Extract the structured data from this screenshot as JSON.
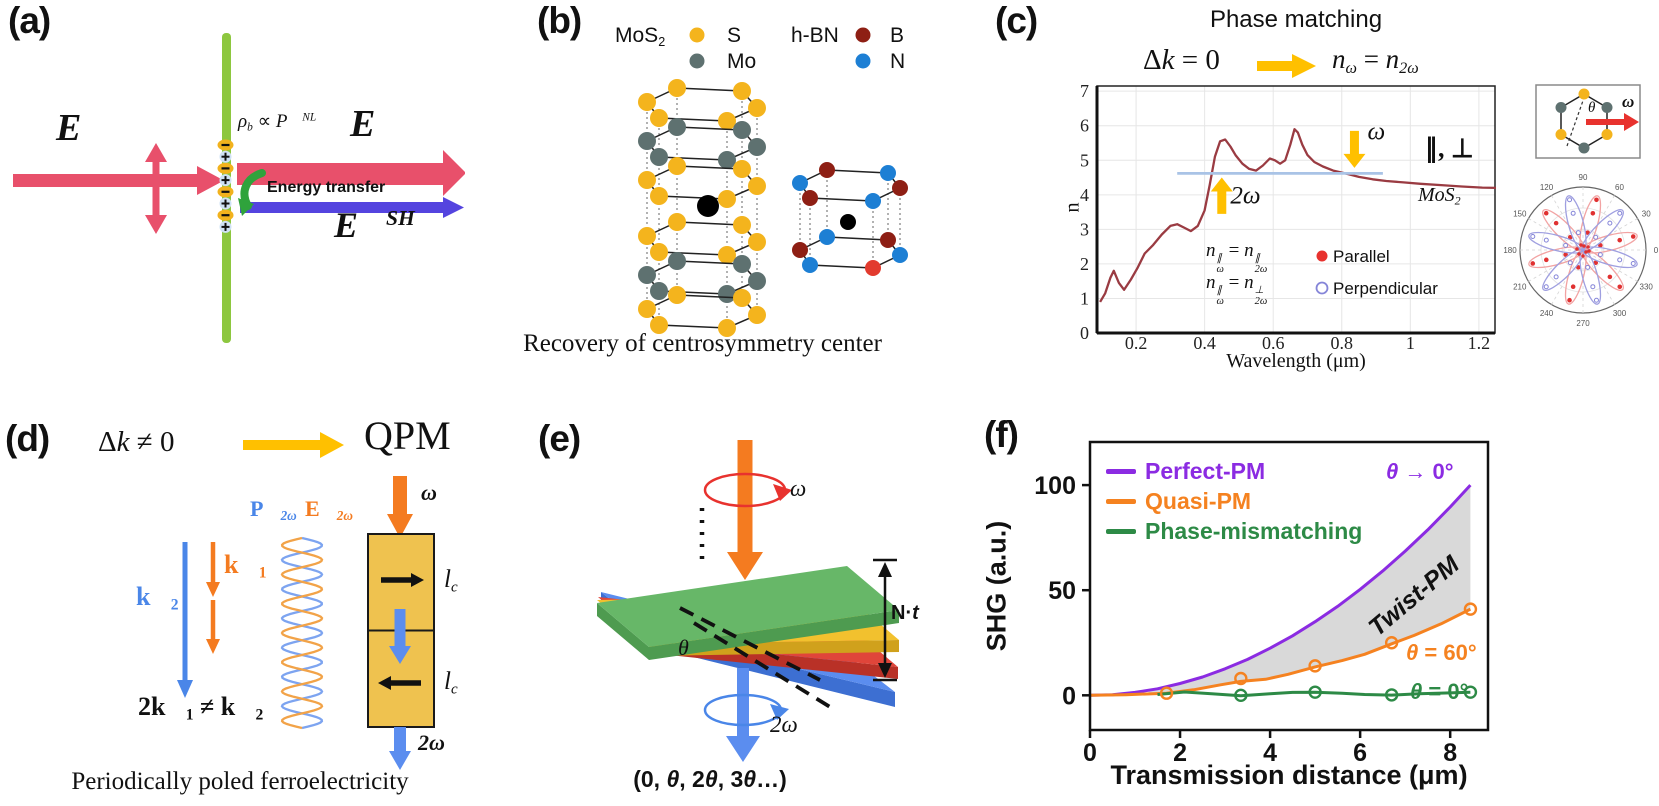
{
  "colors": {
    "pink": "#e8506b",
    "indigo": "#5444df",
    "green_bar": "#8dc73f",
    "green_arrow": "#2fa33c",
    "charge_yellow": "#f2b21d",
    "charge_plus_bg": "#cfe2f5",
    "atom_s": "#f4b41d",
    "atom_mo": "#5e7170",
    "atom_b": "#8e1f14",
    "atom_n": "#1d7fd4",
    "atom_b_bright": "#e23b2e",
    "curve_red": "#9a3b42",
    "pm_line": "#a9c3e6",
    "yellow_arrow": "#ffc000",
    "orange": "#f47b20",
    "blue_arrow": "#5b8def",
    "blue_arrow2": "#4a86e8",
    "box_yellow": "#efc24f",
    "helix_blue": "#7da4f0",
    "helix_orange": "#f2a348",
    "plate_green": "#67b768",
    "plate_green_dark": "#4e9b50",
    "plate_yellow": "#f2c12e",
    "plate_yellow_dark": "#d0a11c",
    "plate_red": "#e0453a",
    "plate_red_dark": "#b93127",
    "plate_blue": "#5b8def",
    "plate_blue_dark": "#3d6fd2",
    "purple": "#8b2be2",
    "orange_f": "#f58220",
    "green_f": "#2d8a46",
    "gray_fill": "#d9d9d9",
    "polar_red": "#e03131",
    "polar_blue": "#8585d8",
    "polar_red_light": "#f2a3a3",
    "polar_blue_light": "#9f9fe0",
    "red_accent": "#e8322e"
  },
  "panel_a": {
    "label": "(a)",
    "e_in": [
      {
        "t": "E⃗",
        "i": 1
      }
    ],
    "e_out": [
      {
        "t": "E⃗",
        "i": 1
      }
    ],
    "e_sh": [
      {
        "t": "E⃗",
        "i": 1
      },
      {
        "t": "SH",
        "i": 1,
        "sup": 1
      }
    ],
    "rho": [
      {
        "t": "ρ",
        "i": 1
      },
      {
        "t": "b",
        "i": 1,
        "sub": 1
      },
      {
        "t": " ∝ "
      },
      {
        "t": "P⃗",
        "i": 1
      },
      {
        "t": "NL",
        "i": 1,
        "sup": 1
      }
    ],
    "energy_transfer": "Energy transfer",
    "charges": [
      "-",
      "+",
      "-",
      "+",
      "-",
      "+",
      "-",
      "+"
    ]
  },
  "panel_b": {
    "label": "(b)",
    "legend": {
      "mos2": [
        {
          "t": "MoS"
        },
        {
          "t": "2",
          "sub": 1
        }
      ],
      "s": "S",
      "mo": "Mo",
      "hbn": "h-BN",
      "b": "B",
      "n": "N"
    },
    "caption": "Recovery of centrosymmetry center"
  },
  "panel_c": {
    "label": "(c)",
    "title": "Phase matching",
    "cond": [
      {
        "t": "Δ"
      },
      {
        "t": "k",
        "i": 1
      },
      {
        "t": " = 0"
      }
    ],
    "result": [
      {
        "t": "n",
        "i": 1
      },
      {
        "t": "ω",
        "i": 1,
        "sub": 1
      },
      {
        "t": " = "
      },
      {
        "t": "n",
        "i": 1
      },
      {
        "t": "2ω",
        "i": 1,
        "sub": 1
      }
    ],
    "eq1": [
      {
        "t": "n",
        "i": 1,
        "stack": {
          "sup": "∥",
          "sub": "ω"
        }
      },
      {
        "t": " = "
      },
      {
        "t": "n",
        "i": 1,
        "stack": {
          "sup": "∥",
          "sub": "2ω"
        }
      }
    ],
    "eq2": [
      {
        "t": "n",
        "i": 1,
        "stack": {
          "sup": "∥",
          "sub": "ω"
        }
      },
      {
        "t": " = "
      },
      {
        "t": "n",
        "i": 1,
        "stack": {
          "sup": "⊥",
          "sub": "2ω"
        }
      }
    ],
    "legend": {
      "parallel": "Parallel",
      "perpendicular": "Perpendicular"
    },
    "pol_label": "∥, ⊥",
    "material": [
      {
        "t": "MoS",
        "i": 1
      },
      {
        "t": "2",
        "i": 1,
        "sub": 1
      }
    ],
    "inset": {
      "theta": [
        {
          "t": "θ",
          "i": 1
        }
      ],
      "omega": [
        {
          "t": "ω",
          "i": 1,
          "b": 1
        }
      ]
    }
  },
  "panel_d": {
    "label": "(d)",
    "cond": [
      {
        "t": "Δ"
      },
      {
        "t": "k",
        "i": 1
      },
      {
        "t": " ≠ 0"
      }
    ],
    "result": "QPM",
    "p2w": [
      {
        "t": "P⃗",
        "b": 1
      },
      {
        "t": "2ω",
        "b": 1,
        "i": 1,
        "sub": 1
      }
    ],
    "e2w": [
      {
        "t": "E⃗",
        "b": 1
      },
      {
        "t": "2ω",
        "b": 1,
        "i": 1,
        "sub": 1
      }
    ],
    "k1": [
      {
        "t": "k⃗",
        "b": 1
      },
      {
        "t": "1",
        "b": 1,
        "sub": 1
      }
    ],
    "k2": [
      {
        "t": "k⃗",
        "b": 1
      },
      {
        "t": "2",
        "b": 1,
        "sub": 1
      }
    ],
    "ineq": [
      {
        "t": "2k⃗",
        "b": 1
      },
      {
        "t": "1",
        "b": 1,
        "sub": 1
      },
      {
        "t": " ≠ ",
        "b": 1
      },
      {
        "t": "k⃗",
        "b": 1
      },
      {
        "t": "2",
        "b": 1,
        "sub": 1
      }
    ],
    "omega": [
      {
        "t": "ω",
        "i": 1,
        "b": 1
      }
    ],
    "two_omega": [
      {
        "t": "2ω",
        "i": 1,
        "b": 1
      }
    ],
    "lc": [
      {
        "t": "l",
        "i": 1
      },
      {
        "t": "c",
        "i": 1,
        "sub": 1
      }
    ],
    "caption": "Periodically poled ferroelectricity"
  },
  "panel_e": {
    "label": "(e)",
    "omega": [
      {
        "t": "ω",
        "i": 1
      }
    ],
    "two_omega": [
      {
        "t": "2ω",
        "i": 1
      }
    ],
    "theta": [
      {
        "t": "θ",
        "i": 1
      }
    ],
    "nt": [
      {
        "t": "N"
      },
      {
        "t": "·"
      },
      {
        "t": "t",
        "i": 1
      }
    ],
    "caption": [
      {
        "t": "(0, "
      },
      {
        "t": "θ",
        "i": 1
      },
      {
        "t": ", 2"
      },
      {
        "t": "θ",
        "i": 1
      },
      {
        "t": ", 3"
      },
      {
        "t": "θ",
        "i": 1
      },
      {
        "t": "…)"
      }
    ]
  },
  "panel_f": {
    "label": "(f)",
    "ann_perfect": [
      {
        "t": "θ",
        "i": 1
      },
      {
        "t": " → 0°"
      }
    ],
    "ann_quasi": [
      {
        "t": "θ",
        "i": 1
      },
      {
        "t": " = 60°"
      }
    ],
    "ann_mismatch": [
      {
        "t": "θ",
        "i": 1
      },
      {
        "t": " = 0°"
      }
    ],
    "region_label": "Twist-PM"
  },
  "chart_data": [
    {
      "id": "refractive_index",
      "type": "line",
      "title": "Phase matching",
      "xlabel": "Wavelength (μm)",
      "ylabel": "n",
      "xlim": [
        0.086,
        1.247
      ],
      "ylim": [
        0,
        7.15
      ],
      "xticks": [
        0.2,
        0.4,
        0.6,
        0.8,
        1,
        1.2
      ],
      "yticks": [
        0,
        1,
        2,
        3,
        4,
        5,
        6,
        7
      ],
      "grid": true,
      "legend_position": "inside-right",
      "series": [
        {
          "name": "n MoS2",
          "color_key": "curve_red",
          "x": [
            0.095,
            0.11,
            0.125,
            0.135,
            0.15,
            0.165,
            0.185,
            0.205,
            0.225,
            0.25,
            0.275,
            0.3,
            0.32,
            0.34,
            0.36,
            0.38,
            0.4,
            0.415,
            0.43,
            0.445,
            0.46,
            0.475,
            0.49,
            0.51,
            0.53,
            0.55,
            0.57,
            0.59,
            0.605,
            0.62,
            0.635,
            0.65,
            0.662,
            0.672,
            0.685,
            0.7,
            0.72,
            0.745,
            0.775,
            0.81,
            0.85,
            0.89,
            0.93,
            0.98,
            1.03,
            1.09,
            1.15,
            1.21,
            1.25
          ],
          "y": [
            0.9,
            1.15,
            1.6,
            1.8,
            1.45,
            1.25,
            1.55,
            1.9,
            2.3,
            2.55,
            2.85,
            3.1,
            3.15,
            3.05,
            2.95,
            3.1,
            3.55,
            4.3,
            5.1,
            5.55,
            5.6,
            5.4,
            5.15,
            4.9,
            4.75,
            4.7,
            4.85,
            5.05,
            5.0,
            4.9,
            5.0,
            5.45,
            5.9,
            5.8,
            5.45,
            5.15,
            4.95,
            4.82,
            4.7,
            4.62,
            4.52,
            4.45,
            4.4,
            4.36,
            4.32,
            4.28,
            4.24,
            4.21,
            4.2
          ]
        },
        {
          "name": "phase-matching level",
          "color_key": "pm_line",
          "x": [
            0.32,
            0.92
          ],
          "y": [
            4.62,
            4.62
          ]
        }
      ],
      "annotations": [
        {
          "type": "arrow-up",
          "x": 0.45,
          "y_tail": 3.45,
          "y_tip": 4.5,
          "label": "2ω",
          "lx": 0.475,
          "ly": 3.75
        },
        {
          "type": "arrow-down",
          "x": 0.837,
          "y_tail": 5.85,
          "y_tip": 4.78,
          "label": "ω",
          "lx": 0.875,
          "ly": 5.6
        }
      ]
    },
    {
      "id": "shg_vs_distance",
      "type": "line",
      "xlabel": "Transmission distance (μm)",
      "ylabel": "SHG (a.u.)",
      "xlim": [
        0,
        8.84
      ],
      "ylim": [
        -16.5,
        120.5
      ],
      "xticks": [
        0,
        2,
        4,
        6,
        8
      ],
      "yticks": [
        0,
        50,
        100
      ],
      "grid": false,
      "legend_position": "top-left",
      "legend": [
        {
          "label": "Perfect-PM",
          "color_key": "purple"
        },
        {
          "label": "Quasi-PM",
          "color_key": "orange_f"
        },
        {
          "label": "Phase-mismatching",
          "color_key": "green_f"
        }
      ],
      "series": [
        {
          "name": "Perfect-PM",
          "color_key": "purple",
          "x": [
            0,
            0.5,
            1,
            1.5,
            2,
            2.5,
            3,
            3.5,
            4,
            4.5,
            5,
            5.5,
            6,
            6.5,
            7,
            7.5,
            8,
            8.45
          ],
          "y": [
            0,
            0.3,
            1.4,
            3.1,
            5.6,
            8.7,
            12.6,
            17.1,
            22.4,
            28.3,
            35,
            42.3,
            50.4,
            59.1,
            68.6,
            78.7,
            89.6,
            100
          ]
        },
        {
          "name": "Quasi-PM",
          "color_key": "orange_f",
          "x": [
            0,
            0.8,
            1.7,
            2.3,
            2.9,
            3.35,
            3.9,
            4.4,
            5,
            5.6,
            6.1,
            6.7,
            7.2,
            7.8,
            8.45
          ],
          "y": [
            0,
            0.3,
            1,
            2.6,
            5,
            6.6,
            7.6,
            10,
            13.5,
            16.5,
            19.5,
            24.5,
            28.5,
            34,
            41
          ],
          "markers_x": [
            1.7,
            3.35,
            5,
            6.7,
            8.45
          ],
          "markers_y": [
            1,
            8,
            14,
            25,
            41
          ]
        },
        {
          "name": "Phase-mismatching",
          "color_key": "green_f",
          "x": [
            1.5,
            2.1,
            2.7,
            3.35,
            4,
            4.5,
            5,
            5.6,
            6.1,
            6.7,
            7.3,
            7.9,
            8.45
          ],
          "y": [
            0.4,
            1.6,
            0.7,
            -0.2,
            0.7,
            1.4,
            1.5,
            1,
            0.4,
            0.1,
            0.7,
            1.1,
            1.5
          ],
          "markers_x": [
            3.35,
            5,
            6.7,
            8.45
          ],
          "markers_y": [
            0,
            1.5,
            0.2,
            1.5
          ]
        }
      ],
      "fill_between": {
        "upper": "Perfect-PM",
        "lower": "Quasi-PM",
        "from_x": 1.3,
        "to_x": 8.45,
        "color_key": "gray_fill",
        "label": "Twist-PM"
      }
    },
    {
      "id": "shg_polar",
      "type": "polar",
      "angle_ticks": [
        0,
        30,
        60,
        90,
        120,
        150,
        180,
        210,
        240,
        270,
        300,
        330
      ],
      "series": [
        {
          "name": "Parallel",
          "color_key": "polar_red",
          "petal_color_key": "polar_red_light",
          "petal_angles": [
            15,
            75,
            135,
            195,
            255,
            315
          ],
          "marker": "filled"
        },
        {
          "name": "Perpendicular",
          "color_key": "polar_blue",
          "petal_color_key": "polar_blue_light",
          "petal_angles": [
            345,
            45,
            105,
            165,
            225,
            285
          ],
          "marker": "open"
        }
      ]
    }
  ]
}
